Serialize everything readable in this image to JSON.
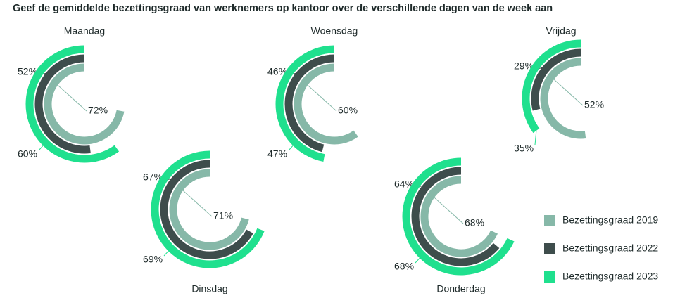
{
  "chart_data": {
    "type": "radial-bar",
    "title": "Geef de gemiddelde bezettingsgraad van werknemers op kantoor over de verschillende dagen van de week aan",
    "categories": [
      "Maandag",
      "Dinsdag",
      "Woensdag",
      "Donderdag",
      "Vrijdag"
    ],
    "series": [
      {
        "name": "Bezettingsgraad 2019",
        "color": "#86b8a8",
        "values": [
          72,
          71,
          60,
          68,
          52
        ],
        "value_labels": [
          "72%",
          "71%",
          "60%",
          "68%",
          "52%"
        ]
      },
      {
        "name": "Bezettingsgraad 2022",
        "color": "#3e4d4c",
        "values": [
          52,
          67,
          46,
          64,
          29
        ],
        "value_labels": [
          "52%",
          "67%",
          "46%",
          "64%",
          "29%"
        ]
      },
      {
        "name": "Bezettingsgraad 2023",
        "color": "#1fe08e",
        "values": [
          60,
          69,
          47,
          68,
          35
        ],
        "value_labels": [
          "60%",
          "69%",
          "47%",
          "68%",
          "35%"
        ]
      }
    ]
  }
}
